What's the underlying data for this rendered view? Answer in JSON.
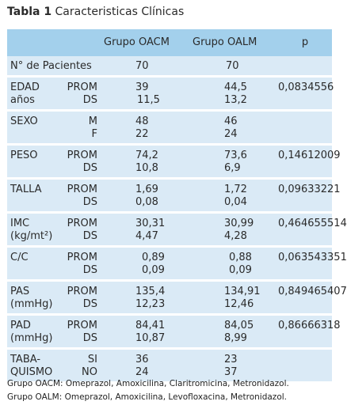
{
  "title": {
    "prefix": "Tabla 1",
    "text": "Caracteristicas Clínicas"
  },
  "headers": [
    "",
    "",
    "Grupo OACM",
    "Grupo OALM",
    "p"
  ],
  "rows": [
    {
      "label": [
        "N° de Pacientes"
      ],
      "stat": [],
      "oacm": [
        "70"
      ],
      "oalm": [
        "70"
      ],
      "p": ""
    },
    {
      "label": [
        "EDAD",
        "años"
      ],
      "stat": [
        "PROM",
        "DS"
      ],
      "oacm": [
        "39",
        "11,5"
      ],
      "oalm": [
        "44,5",
        "13,2"
      ],
      "p": "0,0834556"
    },
    {
      "label": [
        "SEXO"
      ],
      "stat": [
        "M",
        "F"
      ],
      "oacm": [
        "48",
        "22"
      ],
      "oalm": [
        "46",
        "24"
      ],
      "p": ""
    },
    {
      "label": [
        "PESO"
      ],
      "stat": [
        "PROM",
        "DS"
      ],
      "oacm": [
        "74,2",
        "10,8"
      ],
      "oalm": [
        "73,6",
        "6,9"
      ],
      "p": "0,14612009"
    },
    {
      "label": [
        "TALLA"
      ],
      "stat": [
        "PROM",
        "DS"
      ],
      "oacm": [
        "1,69",
        "0,08"
      ],
      "oalm": [
        "1,72",
        "0,04"
      ],
      "p": "0,09633221"
    },
    {
      "label": [
        "IMC",
        "(kg/mt²)"
      ],
      "stat": [
        "PROM",
        "DS"
      ],
      "oacm": [
        "30,31",
        "4,47"
      ],
      "oalm": [
        "30,99",
        "4,28"
      ],
      "p": "0,464655514"
    },
    {
      "label": [
        "C/C"
      ],
      "stat": [
        "PROM",
        "DS"
      ],
      "oacm": [
        "0,89",
        "0,09"
      ],
      "oalm": [
        "0,88",
        "0,09"
      ],
      "p": "0,063543351"
    },
    {
      "label": [
        "PAS",
        "(mmHg)"
      ],
      "stat": [
        "PROM",
        "DS"
      ],
      "oacm": [
        "135,4",
        "12,23"
      ],
      "oalm": [
        "134,91",
        "12,46"
      ],
      "p": "0,849465407"
    },
    {
      "label": [
        "PAD",
        "(mmHg)"
      ],
      "stat": [
        "PROM",
        "DS"
      ],
      "oacm": [
        "84,41",
        "10,87"
      ],
      "oalm": [
        "84,05",
        "8,99"
      ],
      "p": "0,86666318"
    },
    {
      "label": [
        "TABA-",
        "QUISMO"
      ],
      "stat": [
        "SI",
        "NO"
      ],
      "oacm": [
        "36",
        "24"
      ],
      "oalm": [
        "23",
        "37"
      ],
      "p": ""
    }
  ],
  "footnotes": [
    "Grupo OACM: Omeprazol, Amoxicilina, Claritromicina, Metronidazol.",
    "Grupo OALM: Omeprazol, Amoxicilina, Levofloxacina, Metronidazol."
  ]
}
